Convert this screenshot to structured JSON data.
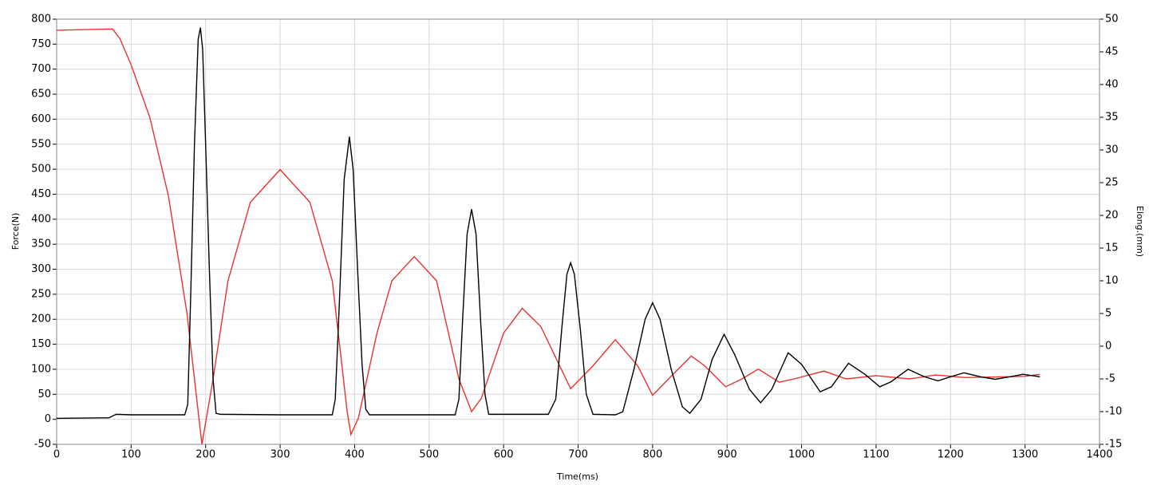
{
  "chart_data": {
    "type": "line",
    "xlabel": "Time(ms)",
    "ylabel": "Force(N)",
    "y2label": "Elong.(mm)",
    "xlim": [
      0,
      1400
    ],
    "xticks": [
      0,
      100,
      200,
      300,
      400,
      500,
      600,
      700,
      800,
      900,
      1000,
      1100,
      1200,
      1300,
      1400
    ],
    "ylim": [
      -50,
      800
    ],
    "yticks": [
      -50,
      0,
      50,
      100,
      150,
      200,
      250,
      300,
      350,
      400,
      450,
      500,
      550,
      600,
      650,
      700,
      750,
      800
    ],
    "y2lim": [
      -15,
      50
    ],
    "y2ticks": [
      -15,
      -10,
      -5,
      0,
      5,
      10,
      15,
      20,
      25,
      30,
      35,
      40,
      45,
      50
    ],
    "grid": true,
    "series": [
      {
        "color": "#000000",
        "axis": "y",
        "x": [
          0,
          70,
          80,
          100,
          150,
          172,
          176,
          180,
          185,
          190,
          193,
          196,
          200,
          205,
          210,
          214,
          220,
          300,
          370,
          374,
          380,
          386,
          393,
          398,
          404,
          410,
          415,
          420,
          500,
          535,
          540,
          545,
          551,
          557,
          563,
          569,
          575,
          580,
          660,
          670,
          678,
          685,
          690,
          695,
          703,
          711,
          720,
          750,
          760,
          775,
          790,
          800,
          810,
          825,
          840,
          850,
          865,
          880,
          896,
          910,
          930,
          945,
          960,
          982,
          1000,
          1025,
          1040,
          1063,
          1085,
          1105,
          1120,
          1143,
          1165,
          1183,
          1200,
          1218,
          1240,
          1260,
          1280,
          1297,
          1320
        ],
        "values": [
          2,
          3,
          10,
          9,
          9,
          9,
          30,
          250,
          550,
          760,
          783,
          740,
          550,
          300,
          80,
          12,
          10,
          9,
          9,
          40,
          250,
          480,
          565,
          500,
          300,
          110,
          20,
          9,
          9,
          9,
          40,
          200,
          370,
          420,
          370,
          200,
          50,
          10,
          10,
          40,
          180,
          290,
          313,
          290,
          180,
          50,
          10,
          9,
          15,
          100,
          200,
          233,
          200,
          100,
          25,
          12,
          40,
          120,
          170,
          130,
          60,
          33,
          60,
          133,
          110,
          55,
          65,
          112,
          90,
          65,
          75,
          100,
          85,
          77,
          85,
          93,
          85,
          80,
          85,
          90,
          85
        ]
      },
      {
        "color": "#e8332f",
        "axis": "y2",
        "x": [
          0,
          75,
          85,
          100,
          125,
          150,
          175,
          190,
          195,
          210,
          230,
          260,
          300,
          340,
          370,
          390,
          395,
          405,
          430,
          450,
          480,
          510,
          540,
          557,
          570,
          600,
          625,
          650,
          690,
          720,
          750,
          780,
          800,
          830,
          852,
          870,
          898,
          920,
          942,
          970,
          990,
          1030,
          1060,
          1100,
          1145,
          1180,
          1220,
          1300,
          1320
        ],
        "values": [
          48.3,
          48.5,
          47,
          43,
          35,
          23,
          5,
          -10,
          -15,
          -5,
          10,
          22,
          27,
          22,
          10,
          -10,
          -13.5,
          -11,
          2,
          10,
          13.7,
          10,
          -5,
          -10,
          -8,
          2,
          5.8,
          3,
          -6.5,
          -3,
          1,
          -3,
          -7.5,
          -4,
          -1.5,
          -3,
          -6.2,
          -5,
          -3.5,
          -5.5,
          -5,
          -3.8,
          -5,
          -4.5,
          -5,
          -4.4,
          -4.8,
          -4.6,
          -4.3
        ]
      }
    ]
  }
}
